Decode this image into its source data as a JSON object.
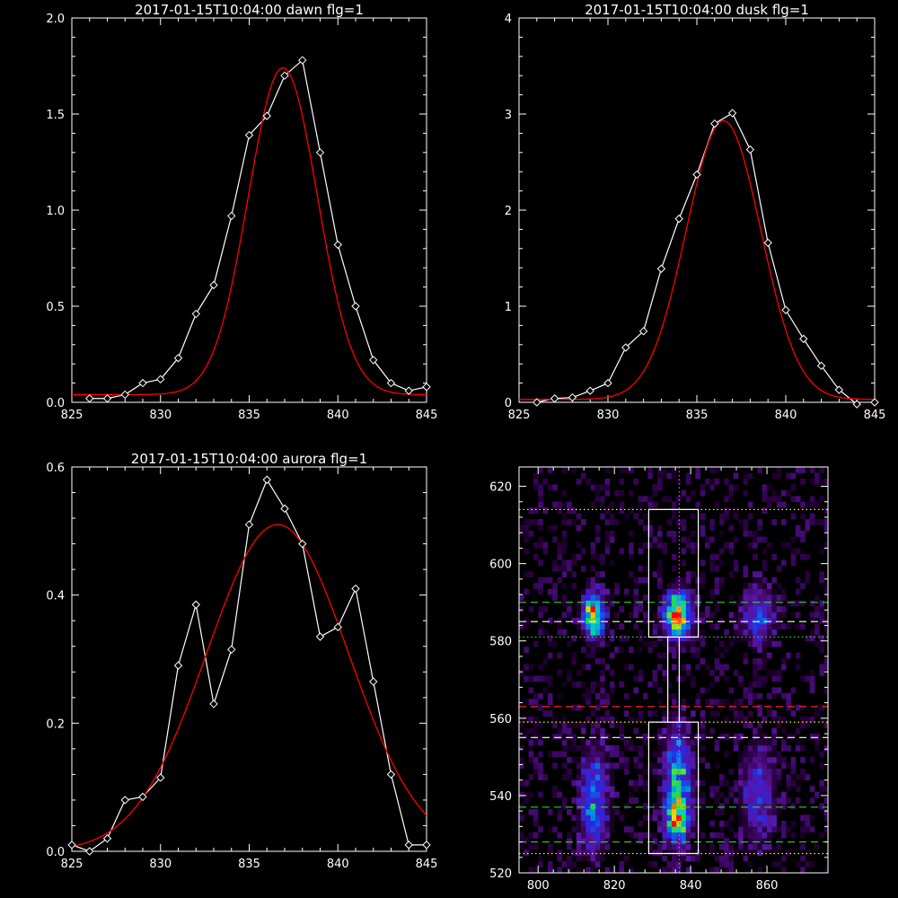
{
  "chart_data": [
    {
      "type": "line",
      "title": "2017-01-15T10:04:00 dawn flg=1",
      "xlim": [
        825,
        845
      ],
      "ylim": [
        0,
        2.0
      ],
      "xticks": [
        "825",
        "830",
        "835",
        "840",
        "845"
      ],
      "yticks": [
        "0.0",
        "0.5",
        "1.0",
        "1.5",
        "2.0"
      ],
      "series": [
        {
          "color": "#ffffff",
          "marker": "diamond",
          "x": [
            826,
            827,
            828,
            829,
            830,
            831,
            832,
            833,
            834,
            835,
            836,
            837,
            838,
            839,
            840,
            841,
            842,
            843,
            844,
            845
          ],
          "y": [
            0.02,
            0.02,
            0.04,
            0.1,
            0.12,
            0.23,
            0.46,
            0.61,
            0.97,
            1.39,
            1.49,
            1.7,
            1.78,
            1.3,
            0.82,
            0.5,
            0.22,
            0.1,
            0.06,
            0.08
          ]
        },
        {
          "color": "#ff0000",
          "fit": "gaussian",
          "amplitude": 1.7,
          "center": 836.9,
          "sigma": 1.95,
          "offset": 0.04
        }
      ]
    },
    {
      "type": "line",
      "title": "2017-01-15T10:04:00 dusk flg=1",
      "xlim": [
        825,
        845
      ],
      "ylim": [
        0,
        4
      ],
      "xticks": [
        "825",
        "830",
        "835",
        "840",
        "845"
      ],
      "yticks": [
        "0",
        "1",
        "2",
        "3",
        "4"
      ],
      "series": [
        {
          "color": "#ffffff",
          "marker": "diamond",
          "x": [
            826,
            827,
            828,
            829,
            830,
            831,
            832,
            833,
            834,
            835,
            836,
            837,
            838,
            839,
            840,
            841,
            842,
            843,
            844,
            845
          ],
          "y": [
            0.0,
            0.04,
            0.05,
            0.12,
            0.2,
            0.57,
            0.74,
            1.39,
            1.91,
            2.37,
            2.9,
            3.01,
            2.63,
            1.66,
            0.96,
            0.66,
            0.38,
            0.13,
            -0.02,
            0.0
          ]
        },
        {
          "color": "#ff0000",
          "fit": "gaussian",
          "amplitude": 2.9,
          "center": 836.5,
          "sigma": 2.1,
          "offset": 0.03
        }
      ]
    },
    {
      "type": "line",
      "title": "2017-01-15T10:04:00 aurora flg=1",
      "xlim": [
        825,
        845
      ],
      "ylim": [
        0,
        0.6
      ],
      "xticks": [
        "825",
        "830",
        "835",
        "840",
        "845"
      ],
      "yticks": [
        "0.0",
        "0.2",
        "0.4",
        "0.6"
      ],
      "series": [
        {
          "color": "#ffffff",
          "marker": "diamond",
          "x": [
            825,
            826,
            827,
            828,
            829,
            830,
            831,
            832,
            833,
            834,
            835,
            836,
            837,
            838,
            839,
            840,
            841,
            842,
            843,
            844,
            845
          ],
          "y": [
            0.01,
            0.0,
            0.02,
            0.08,
            0.085,
            0.115,
            0.29,
            0.385,
            0.23,
            0.315,
            0.51,
            0.58,
            0.535,
            0.48,
            0.335,
            0.35,
            0.41,
            0.265,
            0.12,
            0.01,
            0.01
          ]
        },
        {
          "color": "#ff0000",
          "fit": "gaussian",
          "amplitude": 0.51,
          "center": 836.6,
          "sigma": 4.0,
          "offset": 0.0
        }
      ]
    },
    {
      "type": "heatmap",
      "title": "",
      "xlim": [
        795,
        876
      ],
      "ylim": [
        520,
        625
      ],
      "xticks": [
        "800",
        "820",
        "840",
        "860"
      ],
      "yticks": [
        "520",
        "540",
        "560",
        "580",
        "600",
        "620"
      ],
      "blobs": [
        {
          "x": 814,
          "y": 586,
          "sx": 2.0,
          "sy": 4,
          "amp": 0.85
        },
        {
          "x": 836,
          "y": 586,
          "sx": 2.5,
          "sy": 4,
          "amp": 1.0
        },
        {
          "x": 836,
          "y": 542,
          "sx": 2.5,
          "sy": 10,
          "amp": 0.65
        },
        {
          "x": 836,
          "y": 533,
          "sx": 2.0,
          "sy": 3,
          "amp": 0.55
        },
        {
          "x": 814,
          "y": 538,
          "sx": 2.5,
          "sy": 9,
          "amp": 0.5
        },
        {
          "x": 857,
          "y": 586,
          "sx": 3.0,
          "sy": 5,
          "amp": 0.4
        },
        {
          "x": 857,
          "y": 540,
          "sx": 3.0,
          "sy": 9,
          "amp": 0.35
        }
      ],
      "lines": {
        "vertical_dotted_magenta": [
          837
        ],
        "horizontal": [
          {
            "y": 614,
            "color": "#ffff00",
            "style": "dotted"
          },
          {
            "y": 590,
            "color": "#33cc33",
            "style": "dashed"
          },
          {
            "y": 585,
            "color": "#ffffff",
            "style": "dashed"
          },
          {
            "y": 581,
            "color": "#33cc33",
            "style": "dotted"
          },
          {
            "y": 563,
            "color": "#ff2222",
            "style": "dashed"
          },
          {
            "y": 559,
            "color": "#ffff00",
            "style": "dotted"
          },
          {
            "y": 555,
            "color": "#ffffff",
            "style": "dashed"
          },
          {
            "y": 537,
            "color": "#33cc33",
            "style": "dashed"
          },
          {
            "y": 528,
            "color": "#33cc33",
            "style": "dashed"
          },
          {
            "y": 525,
            "color": "#ffff00",
            "style": "dotted"
          }
        ]
      },
      "boxes": [
        {
          "x0": 829,
          "x1": 842,
          "y0": 581,
          "y1": 614
        },
        {
          "x0": 834,
          "x1": 837,
          "y0": 559,
          "y1": 581
        },
        {
          "x0": 829,
          "x1": 842,
          "y0": 525,
          "y1": 559
        }
      ]
    }
  ]
}
